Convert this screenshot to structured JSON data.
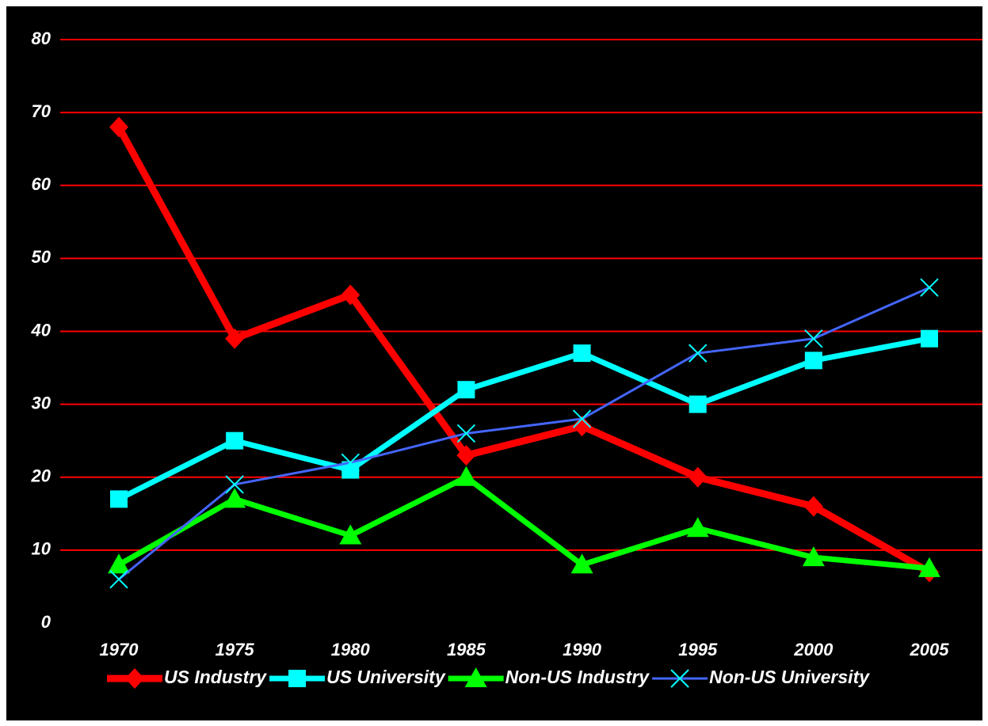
{
  "chart_data": {
    "type": "line",
    "categories": [
      "1970",
      "1975",
      "1980",
      "1985",
      "1990",
      "1995",
      "2000",
      "2005"
    ],
    "series": [
      {
        "name": "US Industry",
        "color": "#ff0000",
        "marker": "diamond",
        "values": [
          68,
          39,
          45,
          23,
          27,
          20,
          16,
          7
        ]
      },
      {
        "name": "US University",
        "color": "#00ffff",
        "marker": "square",
        "values": [
          17,
          25,
          21,
          32,
          37,
          30,
          36,
          39
        ]
      },
      {
        "name": "Non-US Industry",
        "color": "#00ff00",
        "marker": "triangle",
        "values": [
          8,
          17,
          12,
          20,
          8,
          13,
          9,
          7.5
        ]
      },
      {
        "name": "Non-US University",
        "color": "#4466ff",
        "marker": "x",
        "values": [
          6,
          19,
          22,
          26,
          28,
          37,
          39,
          46
        ]
      }
    ],
    "ylim": [
      0,
      80
    ],
    "yticks": [
      0,
      10,
      20,
      30,
      40,
      50,
      60,
      70,
      80
    ],
    "grid": true,
    "grid_color": "#ff0000",
    "background": "#000000",
    "legend": "bottom"
  }
}
